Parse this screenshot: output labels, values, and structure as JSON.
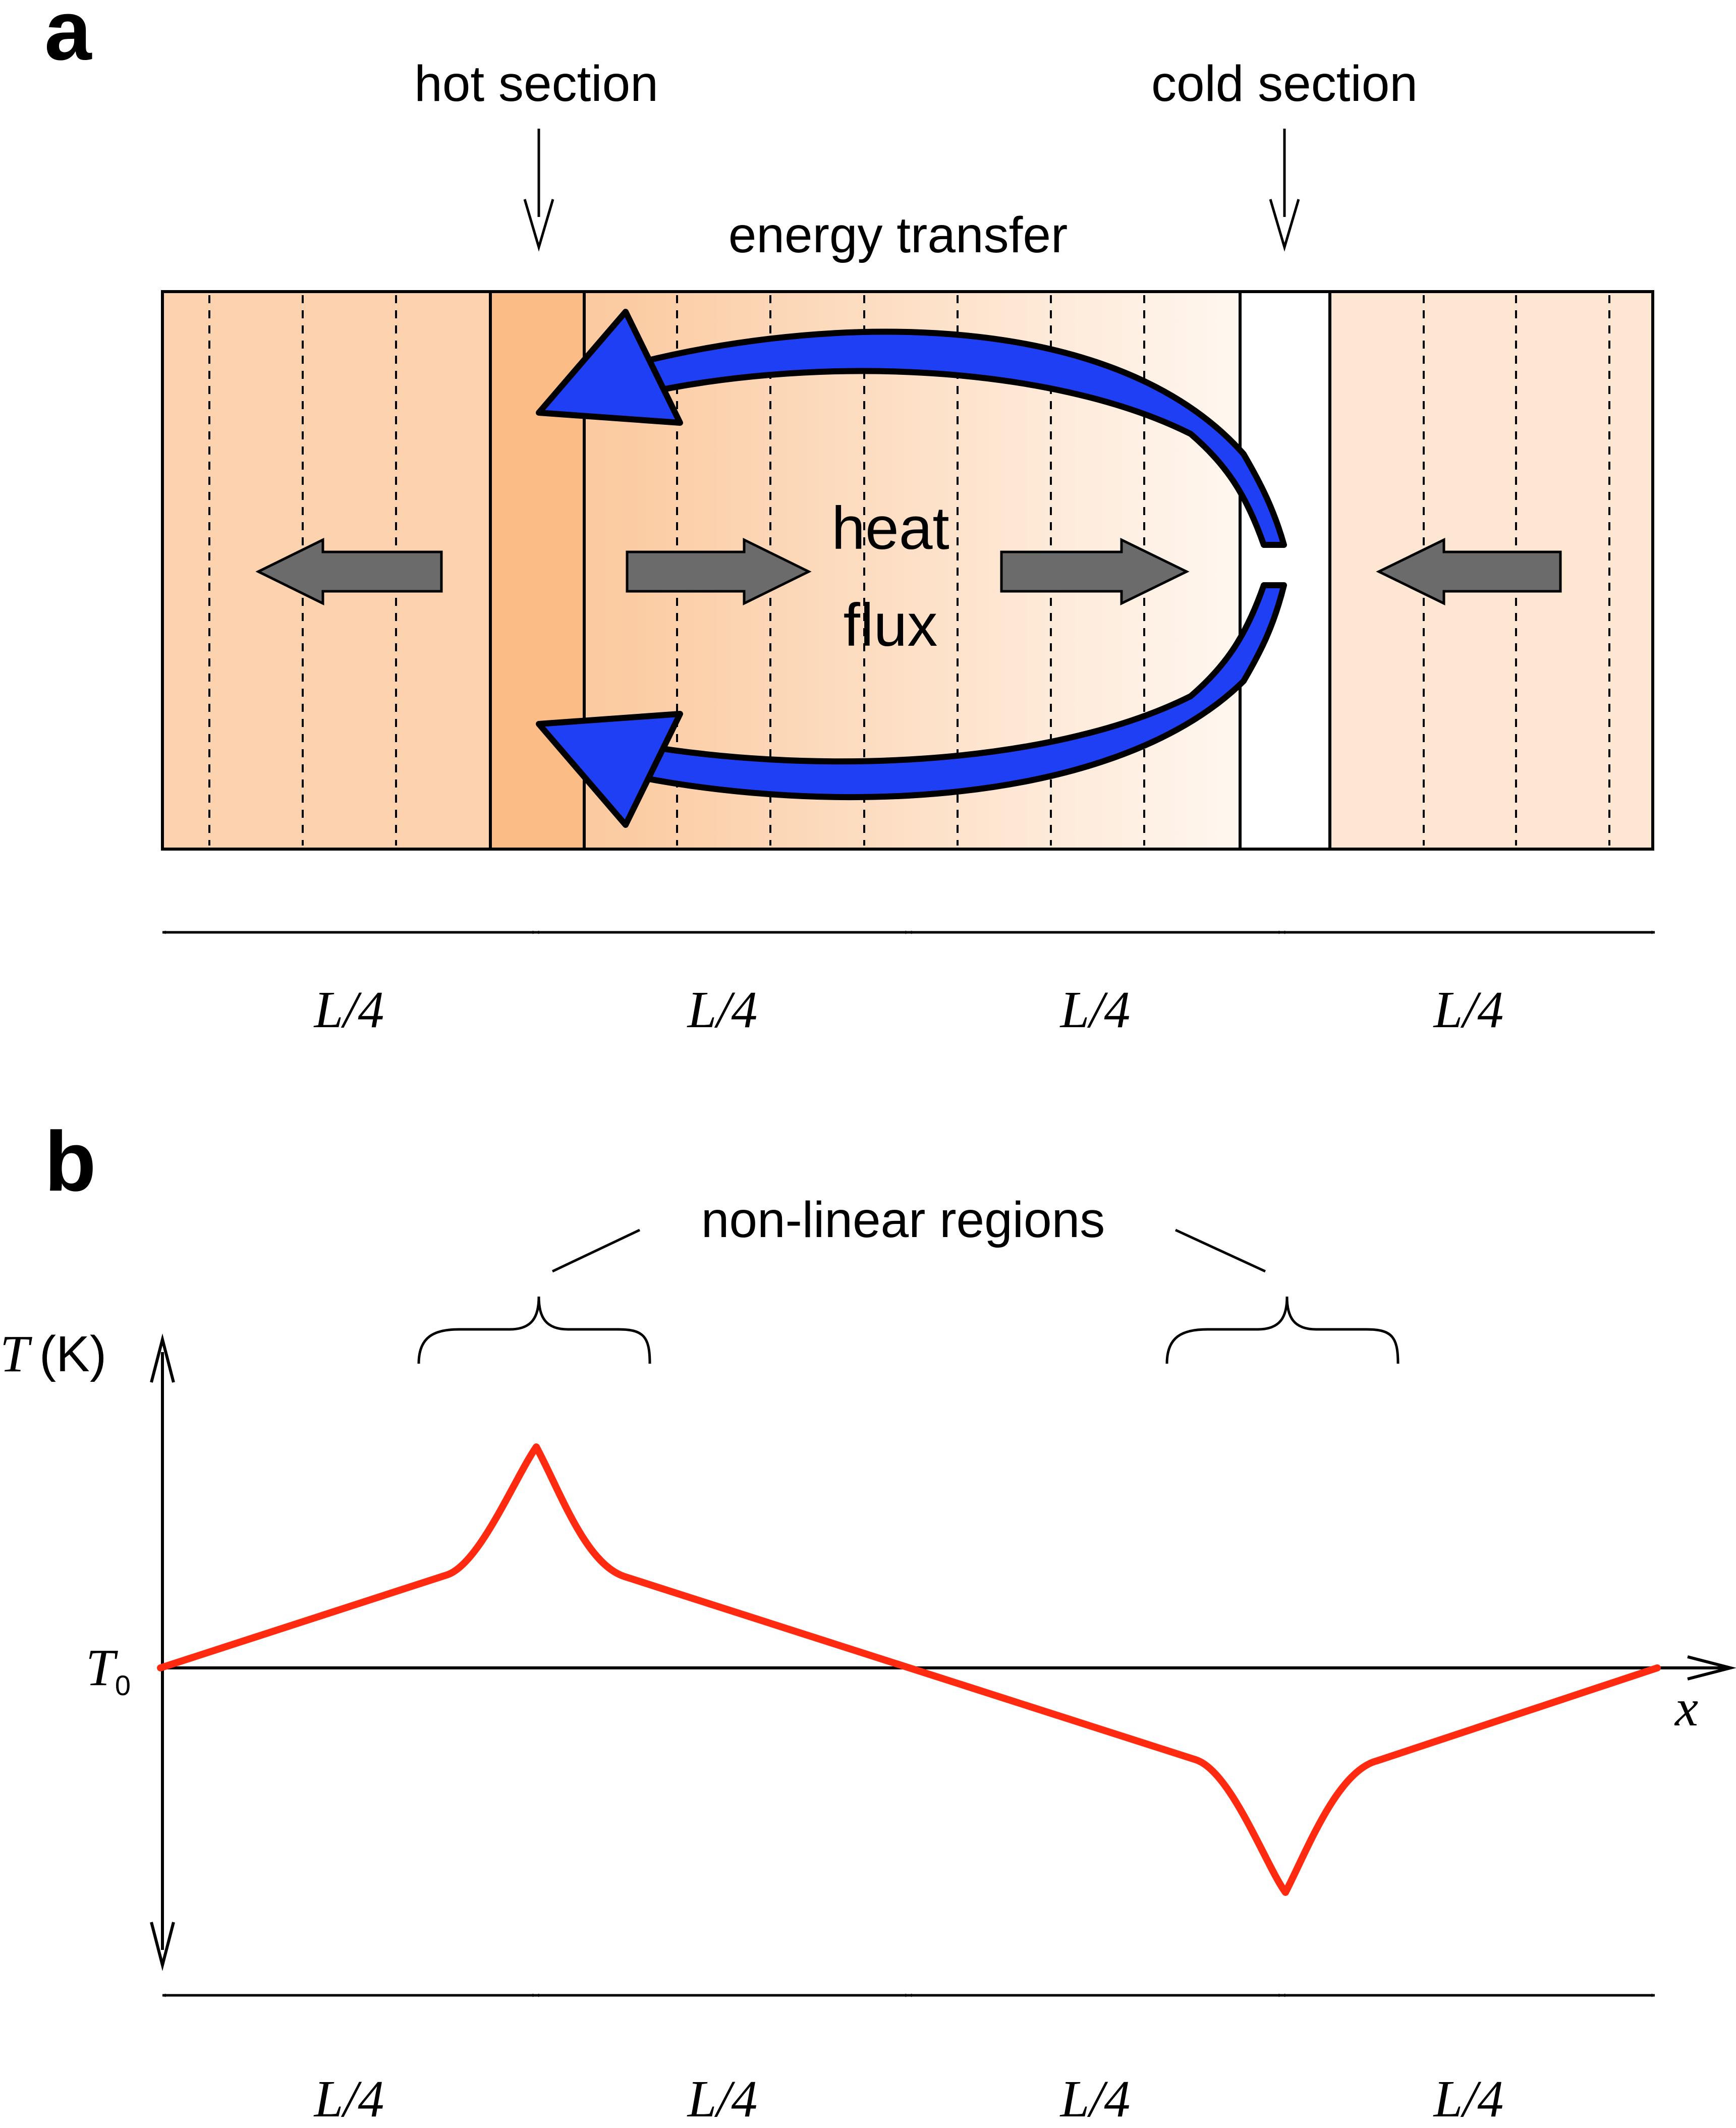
{
  "panel_a": {
    "letter": "a",
    "hot_label": "hot section",
    "cold_label": "cold section",
    "energy_label": "energy transfer",
    "heat_line1": "heat",
    "heat_line2": "flux",
    "segment_labels": [
      "L/4",
      "L/4",
      "L/4",
      "L/4"
    ],
    "colors": {
      "arrow_blue": "#1f3ff5",
      "flux_arrow_gray": "#6b6b6b",
      "hot_section": "#fbbd85",
      "cold_section": "#ffffff"
    }
  },
  "panel_b": {
    "letter": "b",
    "bracket_label": "non-linear regions",
    "y_axis_symbol": "T",
    "y_axis_unit": "(K)",
    "baseline_symbol": "T",
    "baseline_subscript": "0",
    "x_axis_symbol": "x",
    "segment_labels": [
      "L/4",
      "L/4",
      "L/4",
      "L/4"
    ],
    "curve_color": "#ff2a10"
  }
}
